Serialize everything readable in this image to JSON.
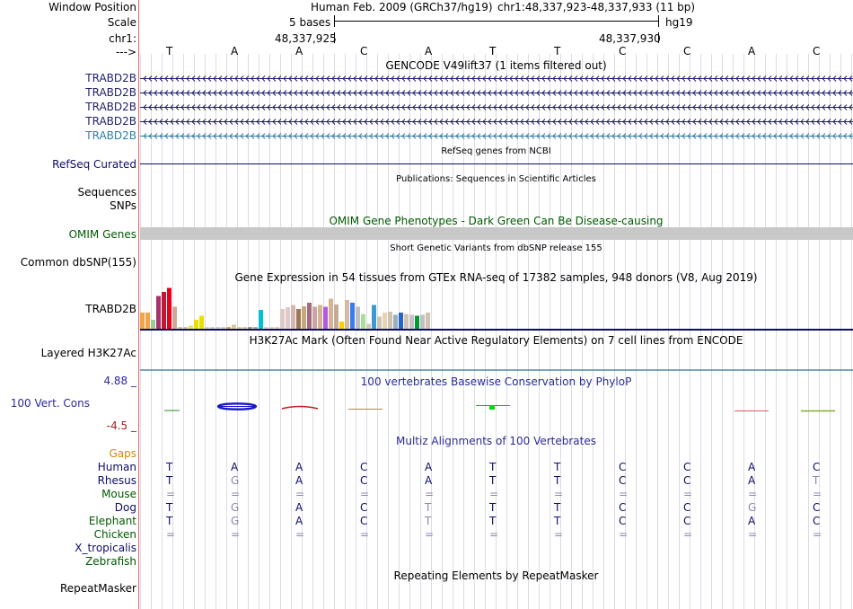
{
  "header": {
    "window_position_label": "Window Position",
    "scale_label": "Scale",
    "chr_label": "chr1:",
    "strand_label": "--->",
    "assembly_text": "Human Feb. 2009 (GRCh37/hg19)",
    "position_text": "chr1:48,337,923-48,337,933 (11 bp)",
    "scale_text": "5 bases",
    "db_text": "hg19",
    "pos_left": "48,337,925",
    "pos_right": "48,337,930"
  },
  "bases": [
    "T",
    "A",
    "A",
    "C",
    "A",
    "T",
    "T",
    "C",
    "C",
    "A",
    "C"
  ],
  "gencode": {
    "title": "GENCODE V49lift37 (1 items filtered out)",
    "genes": [
      "TRABD2B",
      "TRABD2B",
      "TRABD2B",
      "TRABD2B",
      "TRABD2B"
    ]
  },
  "refseq": {
    "title": "RefSeq genes from NCBI",
    "label": "RefSeq Curated"
  },
  "publications": {
    "title": "Publications: Sequences in Scientific Articles",
    "sequences_label": "Sequences",
    "snps_label": "SNPs"
  },
  "omim": {
    "title": "OMIM Gene Phenotypes - Dark Green Can Be Disease-causing",
    "label": "OMIM Genes"
  },
  "dbsnp": {
    "title": "Short Genetic Variants from dbSNP release 155",
    "label": "Common dbSNP(155)"
  },
  "gtex": {
    "title": "Gene Expression in 54 tissues from GTEx RNA-seq of 17382 samples, 948 donors (V8, Aug 2019)",
    "label": "TRABD2B",
    "levels": [
      0.36,
      0.36,
      0.2,
      0.73,
      0.82,
      0.91,
      0.49,
      0.04,
      0.04,
      0.07,
      0.2,
      0.29,
      0.04,
      0.04,
      0.04,
      0.04,
      0.04,
      0.09,
      0.04,
      0.04,
      0.04,
      0.04,
      0.42,
      0.04,
      0.04,
      0.04,
      0.44,
      0.48,
      0.53,
      0.44,
      0.5,
      0.58,
      0.49,
      0.53,
      0.49,
      0.67,
      0.54,
      0.16,
      0.64,
      0.58,
      0.49,
      0.33,
      0.11,
      0.53,
      0.27,
      0.36,
      0.38,
      0.31,
      0.36,
      0.33,
      0.31,
      0.29,
      0.31,
      0.36
    ],
    "colors": [
      "#f0a54a",
      "#f0a54a",
      "#9ec99e",
      "#a5346e",
      "#c21833",
      "#e8001c",
      "#ccaa95",
      "#cfc4b2",
      "#cfc4b2",
      "#e8e05a",
      "#e8e000",
      "#e8e000",
      "#d0cec6",
      "#d0cec6",
      "#d0cec6",
      "#d0cec6",
      "#cfa56b",
      "#d8c99a",
      "#d8c99a",
      "#d8c99a",
      "#9b9b9b",
      "#aaaaaa",
      "#00c2d1",
      "#e7cebc",
      "#e7cebc",
      "#e7cebc",
      "#e0c9c9",
      "#e0c9c9",
      "#d8b4b4",
      "#99785a",
      "#c9a77c",
      "#a36b7f",
      "#c9a5a5",
      "#d5b48f",
      "#b05ae0",
      "#d5b48f",
      "#c6aa9a",
      "#ffcc00",
      "#d4b9a6",
      "#3a7cf0",
      "#c0c0c0",
      "#a8e098",
      "#d1c9b7",
      "#3a9bd4",
      "#cfc4b2",
      "#e8d4b2",
      "#cfc4b2",
      "#98b0c0",
      "#2864c8",
      "#cfc4b2",
      "#c8c0c8",
      "#009933",
      "#c0c0c0",
      "#cfc4b2"
    ]
  },
  "h3k27ac": {
    "title": "H3K27Ac Mark (Often Found Near Active Regulatory Elements) on 7 cell lines from ENCODE",
    "label": "Layered H3K27Ac"
  },
  "phylop": {
    "title": "100 vertebrates Basewise Conservation by PhyloP",
    "label": "100 Vert. Cons",
    "max_label": "4.88 _",
    "min_label": "-4.5 _"
  },
  "multiz": {
    "title": "Multiz Alignments of 100 Vertebrates",
    "gaps_label": "Gaps",
    "species": [
      {
        "name": "Human",
        "color": "#0d0d68",
        "bases": [
          "T",
          "A",
          "A",
          "C",
          "A",
          "T",
          "T",
          "C",
          "C",
          "A",
          "C"
        ],
        "faded": []
      },
      {
        "name": "Rhesus",
        "color": "#0d0d68",
        "bases": [
          "T",
          "G",
          "A",
          "C",
          "A",
          "T",
          "T",
          "C",
          "C",
          "A",
          "T"
        ],
        "faded": [
          1,
          10
        ]
      },
      {
        "name": "Mouse",
        "color": "#005a00",
        "bases": [
          "=",
          "=",
          "=",
          "=",
          "=",
          "=",
          "=",
          "=",
          "=",
          "=",
          "="
        ],
        "faded": [
          0,
          1,
          2,
          3,
          4,
          5,
          6,
          7,
          8,
          9,
          10
        ]
      },
      {
        "name": "Dog",
        "color": "#0d0d68",
        "bases": [
          "T",
          "G",
          "A",
          "C",
          "T",
          "T",
          "T",
          "C",
          "C",
          "G",
          "C"
        ],
        "faded": [
          1,
          4,
          9
        ]
      },
      {
        "name": "Elephant",
        "color": "#005a00",
        "bases": [
          "T",
          "G",
          "A",
          "C",
          "T",
          "T",
          "T",
          "C",
          "C",
          "A",
          "C"
        ],
        "faded": [
          1,
          4
        ]
      },
      {
        "name": "Chicken",
        "color": "#005a00",
        "bases": [
          "=",
          "=",
          "=",
          "=",
          "=",
          "=",
          "=",
          "=",
          "=",
          "=",
          "="
        ],
        "faded": [
          0,
          1,
          2,
          3,
          4,
          5,
          6,
          7,
          8,
          9,
          10
        ]
      },
      {
        "name": "X_tropicalis",
        "color": "#0d0d68",
        "bases": [],
        "faded": []
      },
      {
        "name": "Zebrafish",
        "color": "#005a00",
        "bases": [],
        "faded": []
      }
    ]
  },
  "repeatmasker": {
    "title": "Repeating Elements by RepeatMasker",
    "label": "RepeatMasker"
  },
  "colors": {
    "navy": "#0d0d68",
    "gencode_basic": "#1f1f6f",
    "gencode_light": "#2f7fa8",
    "omim": "#c8c8c8",
    "grid": "#dcdce8"
  }
}
